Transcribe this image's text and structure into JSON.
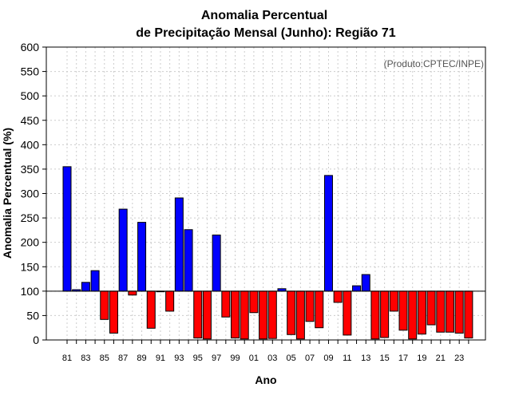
{
  "chart_data": {
    "type": "bar",
    "title_line1": "Anomalia Percentual",
    "title_line2": "de Precipitação Mensal (Junho): Região 71",
    "xlabel": "Ano",
    "ylabel": "Anomalia Percentual (%)",
    "source_note": "(Produto:CPTEC/INPE)",
    "baseline": 100,
    "ylim": [
      0,
      600
    ],
    "yticks": [
      0,
      50,
      100,
      150,
      200,
      250,
      300,
      350,
      400,
      450,
      500,
      550,
      600
    ],
    "categories": [
      "81",
      "82",
      "83",
      "84",
      "85",
      "86",
      "87",
      "88",
      "89",
      "90",
      "91",
      "92",
      "93",
      "94",
      "95",
      "96",
      "97",
      "98",
      "99",
      "00",
      "01",
      "02",
      "03",
      "04",
      "05",
      "06",
      "07",
      "08",
      "09",
      "10",
      "11",
      "12",
      "13",
      "14",
      "15",
      "16",
      "17",
      "18",
      "19",
      "20",
      "21",
      "22",
      "23",
      "24"
    ],
    "xtick_labels": [
      "81",
      "83",
      "85",
      "87",
      "89",
      "91",
      "93",
      "95",
      "97",
      "99",
      "01",
      "03",
      "05",
      "07",
      "09",
      "11",
      "13",
      "15",
      "17",
      "19",
      "21",
      "23"
    ],
    "values": [
      355,
      103,
      118,
      142,
      42,
      14,
      268,
      92,
      241,
      24,
      100,
      59,
      291,
      226,
      4,
      2,
      215,
      47,
      4,
      2,
      56,
      2,
      3,
      105,
      11,
      2,
      38,
      25,
      337,
      77,
      10,
      111,
      134,
      2,
      5,
      59,
      20,
      2,
      12,
      31,
      16,
      16,
      14,
      4
    ],
    "colors": {
      "positive": "#0000ff",
      "negative": "#ff0000",
      "grid": "#cccccc"
    }
  }
}
